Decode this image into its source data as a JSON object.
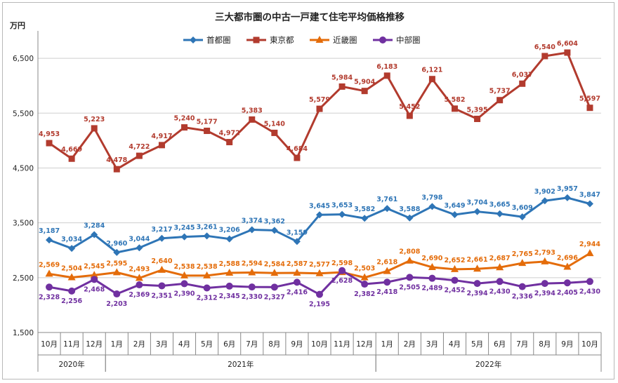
{
  "chart_data": {
    "type": "line",
    "title": "三大都市圏の中古一戸建て住宅平均価格推移",
    "ylabel": "万円",
    "ylim": [
      1500,
      7000
    ],
    "yticks": [
      1500,
      2500,
      3500,
      4500,
      5500,
      6500
    ],
    "ytick_labels": [
      "1,500",
      "2,500",
      "3,500",
      "4,500",
      "5,500",
      "6,500"
    ],
    "grid": true,
    "legend_position": "top-center",
    "categories": [
      "10月",
      "11月",
      "12月",
      "1月",
      "2月",
      "3月",
      "4月",
      "5月",
      "6月",
      "7月",
      "8月",
      "9月",
      "10月",
      "11月",
      "12月",
      "1月",
      "2月",
      "3月",
      "4月",
      "5月",
      "6月",
      "7月",
      "8月",
      "9月",
      "10月"
    ],
    "years": [
      {
        "label": "2020年",
        "start": 0,
        "end": 2
      },
      {
        "label": "2021年",
        "start": 3,
        "end": 14
      },
      {
        "label": "2022年",
        "start": 15,
        "end": 24
      }
    ],
    "series": [
      {
        "name": "首都圏",
        "color": "#2e75b6",
        "marker": "diamond",
        "label_pos": "above",
        "values": [
          3187,
          3034,
          3284,
          2960,
          3044,
          3217,
          3245,
          3261,
          3206,
          3374,
          3362,
          3159,
          3645,
          3653,
          3582,
          3761,
          3588,
          3798,
          3649,
          3704,
          3665,
          3609,
          3902,
          3957,
          3847
        ],
        "labels": [
          "3,187",
          "3,034",
          "3,284",
          "2,960",
          "3,044",
          "3,217",
          "3,245",
          "3,261",
          "3,206",
          "3,374",
          "3,362",
          "3,159",
          "3,645",
          "3,653",
          "3,582",
          "3,761",
          "3,588",
          "3,798",
          "3,649",
          "3,704",
          "3,665",
          "3,609",
          "3,902",
          "3,957",
          "3,847"
        ]
      },
      {
        "name": "東京都",
        "color": "#b23b2e",
        "marker": "square",
        "label_pos": "above",
        "values": [
          4953,
          4669,
          5223,
          4478,
          4722,
          4917,
          5240,
          5177,
          4972,
          5383,
          5140,
          4684,
          5579,
          5984,
          5904,
          6183,
          5452,
          6121,
          5582,
          5395,
          5737,
          6037,
          6540,
          6604,
          5597
        ],
        "labels": [
          "4,953",
          "4,669",
          "5,223",
          "4,478",
          "4,722",
          "4,917",
          "5,240",
          "5,177",
          "4,972",
          "5,383",
          "5,140",
          "4,684",
          "5,579",
          "5,984",
          "5,904",
          "6,183",
          "5,452",
          "6,121",
          "5,582",
          "5,395",
          "5,737",
          "6,037",
          "6,540",
          "6,604",
          "5,597"
        ]
      },
      {
        "name": "近畿圏",
        "color": "#e46c0a",
        "marker": "triangle",
        "label_pos": "above",
        "values": [
          2569,
          2504,
          2545,
          2595,
          2493,
          2640,
          2538,
          2538,
          2588,
          2594,
          2584,
          2587,
          2577,
          2598,
          2503,
          2618,
          2808,
          2690,
          2652,
          2661,
          2687,
          2765,
          2793,
          2696,
          2944
        ],
        "labels": [
          "2,569",
          "2,504",
          "2,545",
          "2,595",
          "2,493",
          "2,640",
          "2,538",
          "2,538",
          "2,588",
          "2,594",
          "2,584",
          "2,587",
          "2,577",
          "2,598",
          "2,503",
          "2,618",
          "2,808",
          "2,690",
          "2,652",
          "2,661",
          "2,687",
          "2,765",
          "2,793",
          "2,696",
          "2,944"
        ]
      },
      {
        "name": "中部圏",
        "color": "#7030a0",
        "marker": "circle",
        "label_pos": "below",
        "values": [
          2328,
          2256,
          2468,
          2203,
          2369,
          2351,
          2390,
          2312,
          2345,
          2330,
          2327,
          2416,
          2195,
          2628,
          2382,
          2418,
          2505,
          2489,
          2452,
          2394,
          2430,
          2336,
          2394,
          2405,
          2430
        ],
        "labels": [
          "2,328",
          "2,256",
          "2,468",
          "2,203",
          "2,369",
          "2,351",
          "2,390",
          "2,312",
          "2,345",
          "2,330",
          "2,327",
          "2,416",
          "2,195",
          "2,628",
          "2,382",
          "2,418",
          "2,505",
          "2,489",
          "2,452",
          "2,394",
          "2,430",
          "2,336",
          "2,394",
          "2,405",
          "2,430"
        ]
      }
    ]
  }
}
